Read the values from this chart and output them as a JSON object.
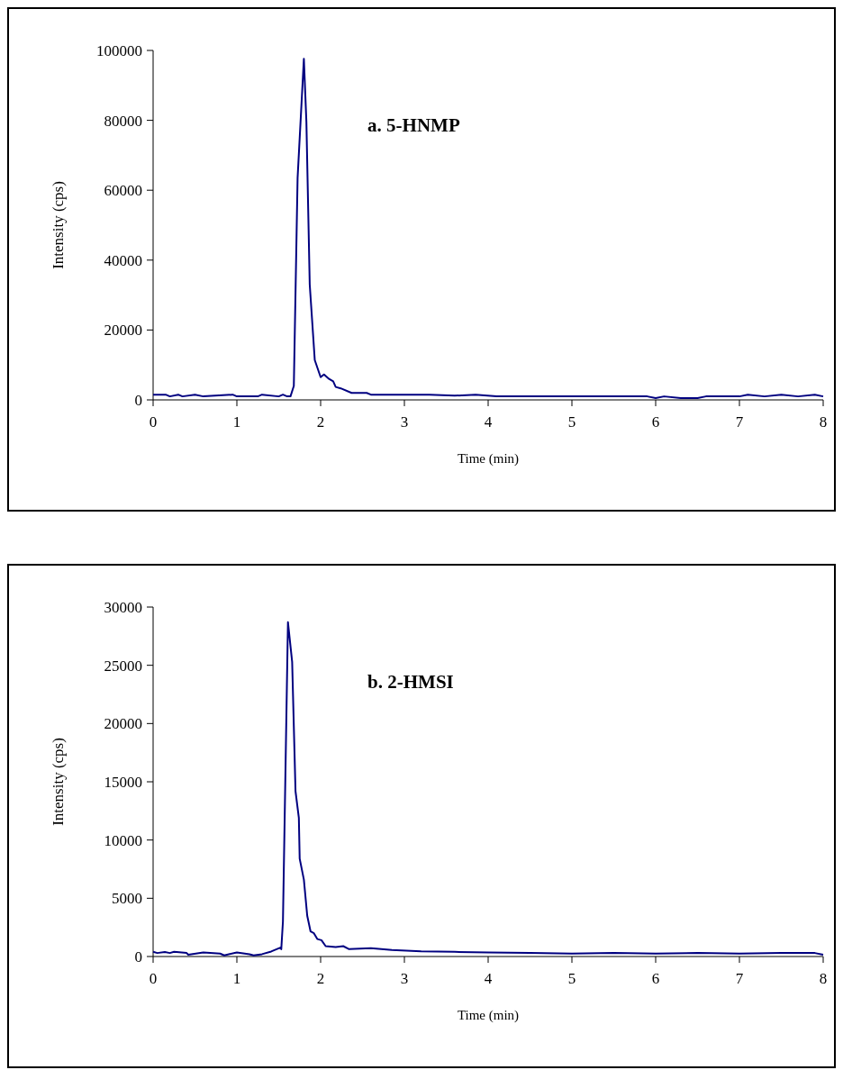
{
  "chart_data": [
    {
      "type": "line",
      "title": "a. 5-HNMP",
      "xlabel": "Time (min)",
      "ylabel": "Intensity (cps)",
      "xlim": [
        0,
        8
      ],
      "xticks": [
        0,
        1,
        2,
        3,
        4,
        5,
        6,
        7,
        8
      ],
      "ylim": [
        0,
        100000
      ],
      "yticks": [
        0,
        20000,
        40000,
        60000,
        80000,
        100000
      ],
      "grid": false,
      "marker": "none",
      "line_style": "solid",
      "series": [
        {
          "color": "#000080",
          "x": [
            0,
            0.15,
            0.2,
            0.3,
            0.35,
            0.5,
            0.6,
            0.95,
            1.0,
            1.25,
            1.3,
            1.5,
            1.55,
            1.6,
            1.64,
            1.68,
            1.725,
            1.8,
            1.83,
            1.87,
            1.93,
            2.0,
            2.04,
            2.1,
            2.15,
            2.18,
            2.24,
            2.37,
            2.55,
            2.6,
            2.99,
            3.3,
            3.6,
            3.85,
            4.1,
            4.5,
            5.0,
            5.5,
            5.9,
            6.0,
            6.1,
            6.3,
            6.5,
            6.6,
            7.0,
            7.1,
            7.3,
            7.5,
            7.7,
            7.9,
            8.0
          ],
          "values": [
            1500,
            1500,
            1000,
            1500,
            1000,
            1500,
            1000,
            1500,
            1000,
            1000,
            1500,
            1000,
            1500,
            1000,
            1000,
            4000,
            63500,
            97600,
            79600,
            33000,
            11400,
            6500,
            7300,
            6000,
            5300,
            3700,
            3300,
            2000,
            2000,
            1500,
            1500,
            1500,
            1200,
            1500,
            1000,
            1000,
            1000,
            1000,
            1000,
            500,
            1000,
            500,
            500,
            1000,
            1000,
            1500,
            1000,
            1500,
            1000,
            1500,
            1000
          ]
        }
      ]
    },
    {
      "type": "line",
      "title": "b. 2-HMSI",
      "xlabel": "Time (min)",
      "ylabel": "Intensity (cps)",
      "xlim": [
        0,
        8
      ],
      "xticks": [
        0,
        1,
        2,
        3,
        4,
        5,
        6,
        7,
        8
      ],
      "ylim": [
        0,
        30000
      ],
      "yticks": [
        0,
        5000,
        10000,
        15000,
        20000,
        25000,
        30000
      ],
      "grid": false,
      "marker": "none",
      "line_style": "solid",
      "series": [
        {
          "color": "#000080",
          "x": [
            0,
            0.05,
            0.14,
            0.2,
            0.25,
            0.4,
            0.42,
            0.6,
            0.8,
            0.85,
            1.0,
            1.15,
            1.2,
            1.3,
            1.41,
            1.52,
            1.53,
            1.55,
            1.61,
            1.66,
            1.7,
            1.74,
            1.75,
            1.8,
            1.84,
            1.88,
            1.92,
            1.96,
            2.01,
            2.06,
            2.18,
            2.27,
            2.34,
            2.6,
            2.85,
            3.2,
            3.6,
            4.0,
            4.5,
            5.0,
            5.5,
            6.0,
            6.5,
            7.0,
            7.5,
            7.9,
            8.0
          ],
          "values": [
            400,
            300,
            380,
            300,
            400,
            300,
            150,
            350,
            250,
            100,
            350,
            200,
            100,
            200,
            430,
            760,
            630,
            3000,
            28700,
            25300,
            14200,
            11900,
            8400,
            6600,
            3500,
            2150,
            2000,
            1500,
            1400,
            890,
            810,
            890,
            630,
            710,
            560,
            450,
            400,
            350,
            300,
            250,
            300,
            250,
            300,
            250,
            300,
            300,
            150
          ]
        }
      ]
    }
  ]
}
